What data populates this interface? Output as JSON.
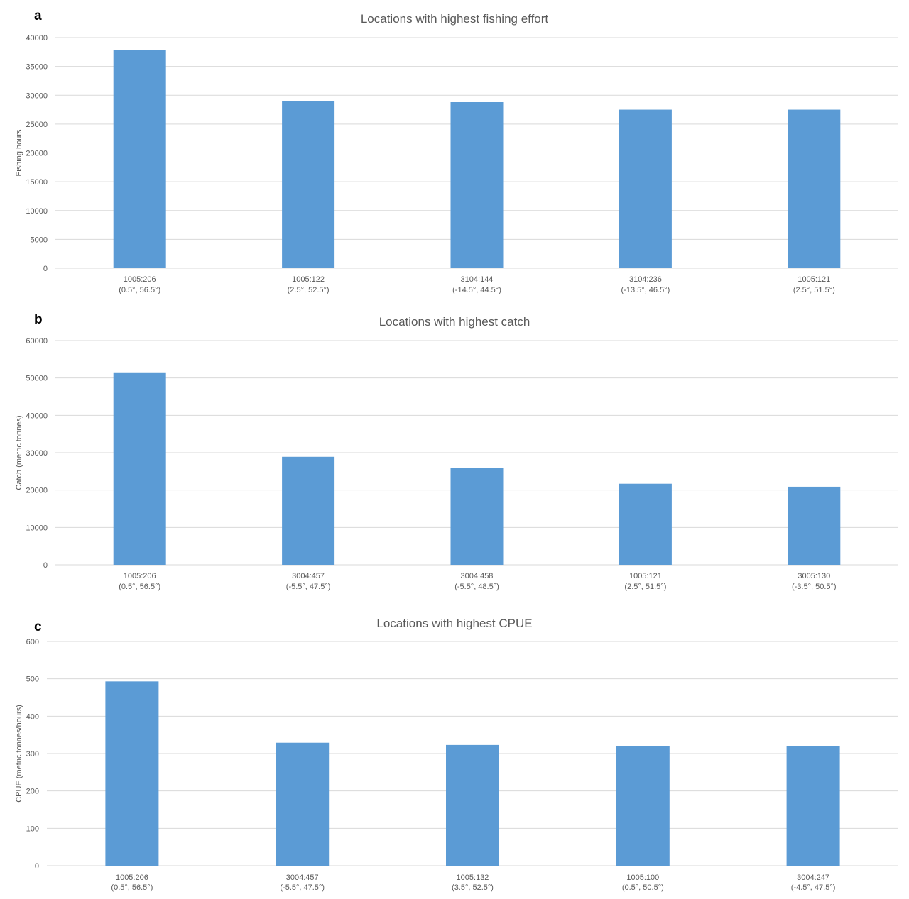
{
  "chart_data": [
    {
      "panel": "a",
      "type": "bar",
      "title": "Locations with highest fishing effort",
      "ylabel": "Fishing hours",
      "xlabel": "",
      "ylim": [
        0,
        40000
      ],
      "yticks": [
        0,
        5000,
        10000,
        15000,
        20000,
        25000,
        30000,
        35000,
        40000
      ],
      "grid": true,
      "color": "#5b9bd5",
      "categories": [
        {
          "code": "1005:206",
          "coords": "(0.5°, 56.5°)"
        },
        {
          "code": "1005:122",
          "coords": "(2.5°, 52.5°)"
        },
        {
          "code": "3104:144",
          "coords": "(-14.5°, 44.5°)"
        },
        {
          "code": "3104:236",
          "coords": "(-13.5°, 46.5°)"
        },
        {
          "code": "1005:121",
          "coords": "(2.5°, 51.5°)"
        }
      ],
      "values": [
        37800,
        29000,
        28800,
        27500,
        27500
      ]
    },
    {
      "panel": "b",
      "type": "bar",
      "title": "Locations with highest catch",
      "ylabel": "Catch (metric tonnes)",
      "xlabel": "",
      "ylim": [
        0,
        60000
      ],
      "yticks": [
        0,
        10000,
        20000,
        30000,
        40000,
        50000,
        60000
      ],
      "grid": true,
      "color": "#5b9bd5",
      "categories": [
        {
          "code": "1005:206",
          "coords": "(0.5°, 56.5°)"
        },
        {
          "code": "3004:457",
          "coords": "(-5.5°, 47.5°)"
        },
        {
          "code": "3004:458",
          "coords": "(-5.5°, 48.5°)"
        },
        {
          "code": "1005:121",
          "coords": "(2.5°, 51.5°)"
        },
        {
          "code": "3005:130",
          "coords": "(-3.5°, 50.5°)"
        }
      ],
      "values": [
        51500,
        28900,
        26000,
        21700,
        20900
      ]
    },
    {
      "panel": "c",
      "type": "bar",
      "title": "Locations with highest CPUE",
      "ylabel": "CPUE (metric tonnes/hours)",
      "xlabel": "",
      "ylim": [
        0,
        600
      ],
      "yticks": [
        0,
        100,
        200,
        300,
        400,
        500,
        600
      ],
      "grid": true,
      "color": "#5b9bd5",
      "categories": [
        {
          "code": "1005:206",
          "coords": "(0.5°, 56.5°)"
        },
        {
          "code": "3004:457",
          "coords": "(-5.5°, 47.5°)"
        },
        {
          "code": "1005:132",
          "coords": "(3.5°, 52.5°)"
        },
        {
          "code": "1005:100",
          "coords": "(0.5°, 50.5°)"
        },
        {
          "code": "3004:247",
          "coords": "(-4.5°, 47.5°)"
        }
      ],
      "values": [
        493,
        329,
        323,
        319,
        319
      ]
    }
  ]
}
